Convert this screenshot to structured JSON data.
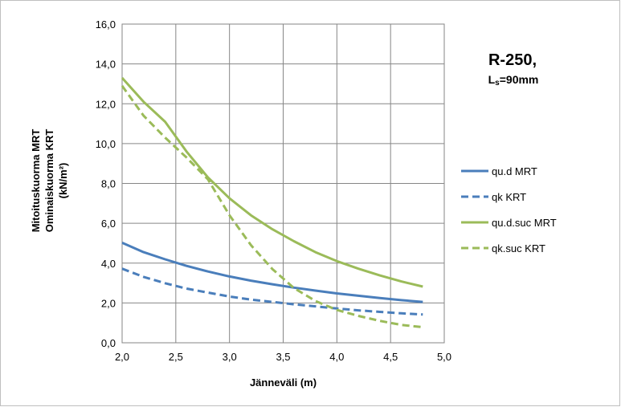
{
  "chart_data": {
    "type": "line",
    "title": "",
    "xlabel": "Jänneväli (m)",
    "ylabel_lines": [
      "Mitoituskuorma  MRT",
      "Ominaiskuorma  KRT",
      "(kN/m²)"
    ],
    "xlim": [
      2.0,
      5.0
    ],
    "ylim": [
      0.0,
      16.0
    ],
    "x_ticks": [
      "2,0",
      "2,5",
      "3,0",
      "3,5",
      "4,0",
      "4,5",
      "5,0"
    ],
    "y_ticks": [
      "0,0",
      "2,0",
      "4,0",
      "6,0",
      "8,0",
      "10,0",
      "12,0",
      "14,0",
      "16,0"
    ],
    "grid": true,
    "legend_position": "right",
    "annotation": {
      "title": "R-250,",
      "sub_main": "L",
      "sub_sub": "s",
      "sub_rest": "=90mm"
    },
    "series": [
      {
        "name": "qu.d    MRT",
        "color": "#4a7ebb",
        "dashed": false,
        "points": [
          [
            2.0,
            5.02
          ],
          [
            2.2,
            4.55
          ],
          [
            2.4,
            4.19
          ],
          [
            2.6,
            3.86
          ],
          [
            2.8,
            3.58
          ],
          [
            3.0,
            3.33
          ],
          [
            3.2,
            3.12
          ],
          [
            3.4,
            2.94
          ],
          [
            3.6,
            2.77
          ],
          [
            3.8,
            2.62
          ],
          [
            4.0,
            2.48
          ],
          [
            4.2,
            2.36
          ],
          [
            4.4,
            2.25
          ],
          [
            4.6,
            2.14
          ],
          [
            4.8,
            2.05
          ]
        ]
      },
      {
        "name": "qk   KRT",
        "color": "#4a7ebb",
        "dashed": true,
        "points": [
          [
            2.0,
            3.72
          ],
          [
            2.2,
            3.31
          ],
          [
            2.4,
            2.99
          ],
          [
            2.6,
            2.72
          ],
          [
            2.8,
            2.52
          ],
          [
            3.0,
            2.32
          ],
          [
            3.2,
            2.17
          ],
          [
            3.4,
            2.05
          ],
          [
            3.6,
            1.93
          ],
          [
            3.8,
            1.83
          ],
          [
            4.0,
            1.72
          ],
          [
            4.2,
            1.63
          ],
          [
            4.4,
            1.55
          ],
          [
            4.6,
            1.48
          ],
          [
            4.8,
            1.42
          ]
        ]
      },
      {
        "name": "qu.d.suc   MRT",
        "color": "#9bbb59",
        "dashed": false,
        "points": [
          [
            2.0,
            13.3
          ],
          [
            2.2,
            12.1
          ],
          [
            2.4,
            11.1
          ],
          [
            2.6,
            9.6
          ],
          [
            2.8,
            8.3
          ],
          [
            3.0,
            7.25
          ],
          [
            3.2,
            6.4
          ],
          [
            3.4,
            5.7
          ],
          [
            3.6,
            5.1
          ],
          [
            3.8,
            4.55
          ],
          [
            4.0,
            4.1
          ],
          [
            4.2,
            3.72
          ],
          [
            4.4,
            3.38
          ],
          [
            4.6,
            3.08
          ],
          [
            4.8,
            2.82
          ]
        ]
      },
      {
        "name": "qk.suc   KRT",
        "color": "#9bbb59",
        "dashed": true,
        "points": [
          [
            2.0,
            12.9
          ],
          [
            2.2,
            11.4
          ],
          [
            2.4,
            10.3
          ],
          [
            2.6,
            9.3
          ],
          [
            2.8,
            8.2
          ],
          [
            3.0,
            6.4
          ],
          [
            3.2,
            4.9
          ],
          [
            3.4,
            3.7
          ],
          [
            3.6,
            2.75
          ],
          [
            3.8,
            2.1
          ],
          [
            4.0,
            1.65
          ],
          [
            4.2,
            1.35
          ],
          [
            4.4,
            1.1
          ],
          [
            4.6,
            0.9
          ],
          [
            4.8,
            0.78
          ]
        ]
      }
    ]
  }
}
